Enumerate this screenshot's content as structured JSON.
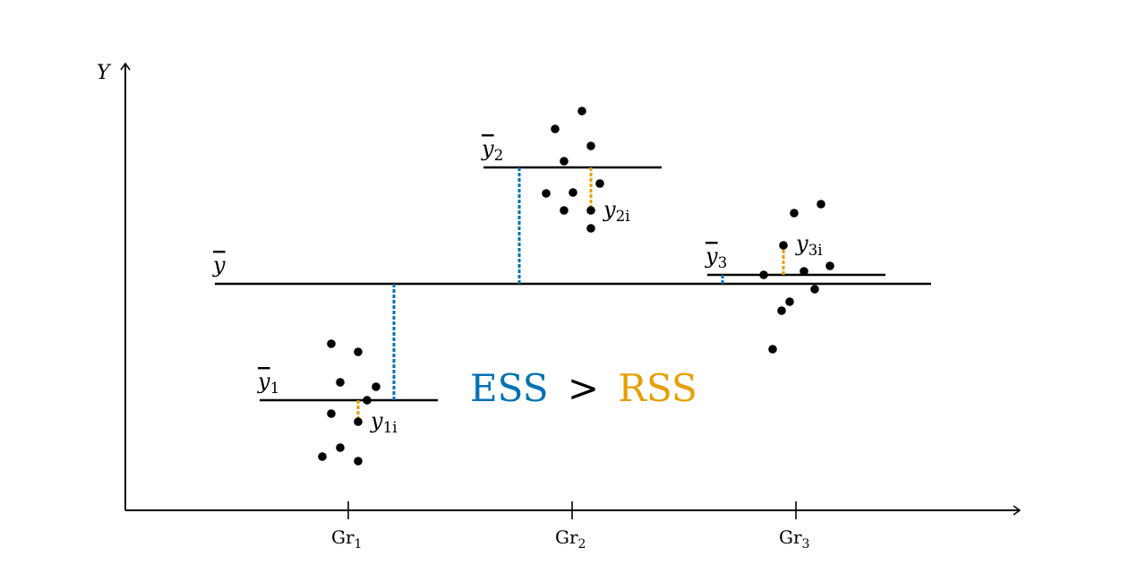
{
  "axes": {
    "y_label": "Y"
  },
  "groups": [
    {
      "tick_label": "Gr",
      "tick_sub": "1",
      "mean_label": "y",
      "mean_sub": "1",
      "obs_label": "y",
      "obs_sub": "1i"
    },
    {
      "tick_label": "Gr",
      "tick_sub": "2",
      "mean_label": "y",
      "mean_sub": "2",
      "obs_label": "y",
      "obs_sub": "2i"
    },
    {
      "tick_label": "Gr",
      "tick_sub": "3",
      "mean_label": "y",
      "mean_sub": "3",
      "obs_label": "y",
      "obs_sub": "3i"
    }
  ],
  "grand_mean_label": "y",
  "equation": {
    "left": "ESS",
    "op": ">",
    "right": "RSS"
  },
  "colors": {
    "ess": "#0072B2",
    "rss": "#E69F00",
    "ink": "#000000"
  }
}
